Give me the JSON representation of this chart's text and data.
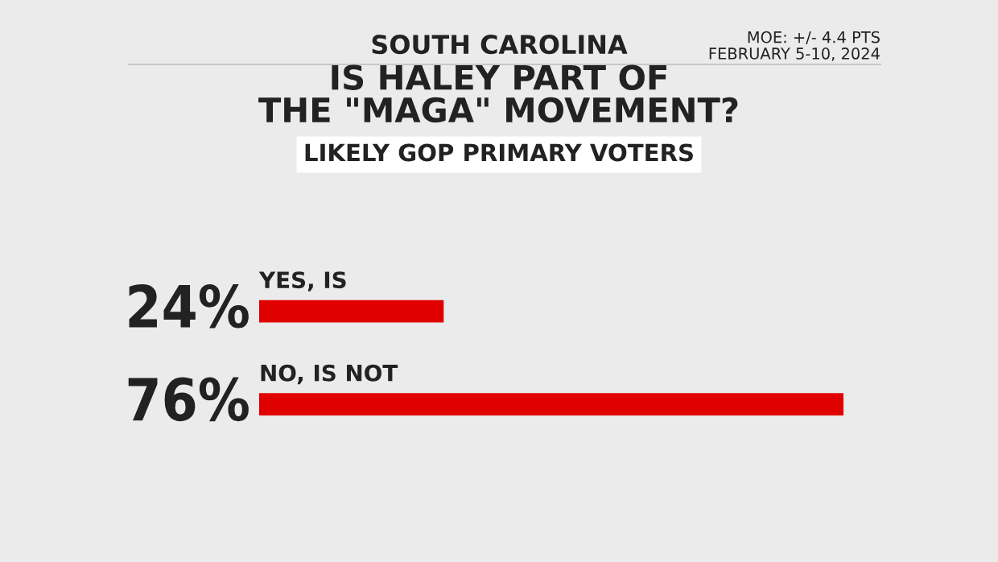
{
  "chart_data": {
    "type": "bar",
    "orientation": "horizontal",
    "title": "IS HALEY PART OF\nTHE \"MAGA\" MOVEMENT?",
    "subtitle": "LIKELY GOP PRIMARY VOTERS",
    "annotations": [
      "SOUTH CAROLINA",
      "MOE: +/- 4.4 PTS\nFEBRUARY 5-10, 2024"
    ],
    "categories": [
      "YES, IS",
      "NO, IS NOT"
    ],
    "values": [
      24,
      76
    ],
    "value_labels": [
      "24%",
      "76%"
    ],
    "color": "#e00000",
    "xlim": [
      0,
      76
    ]
  }
}
